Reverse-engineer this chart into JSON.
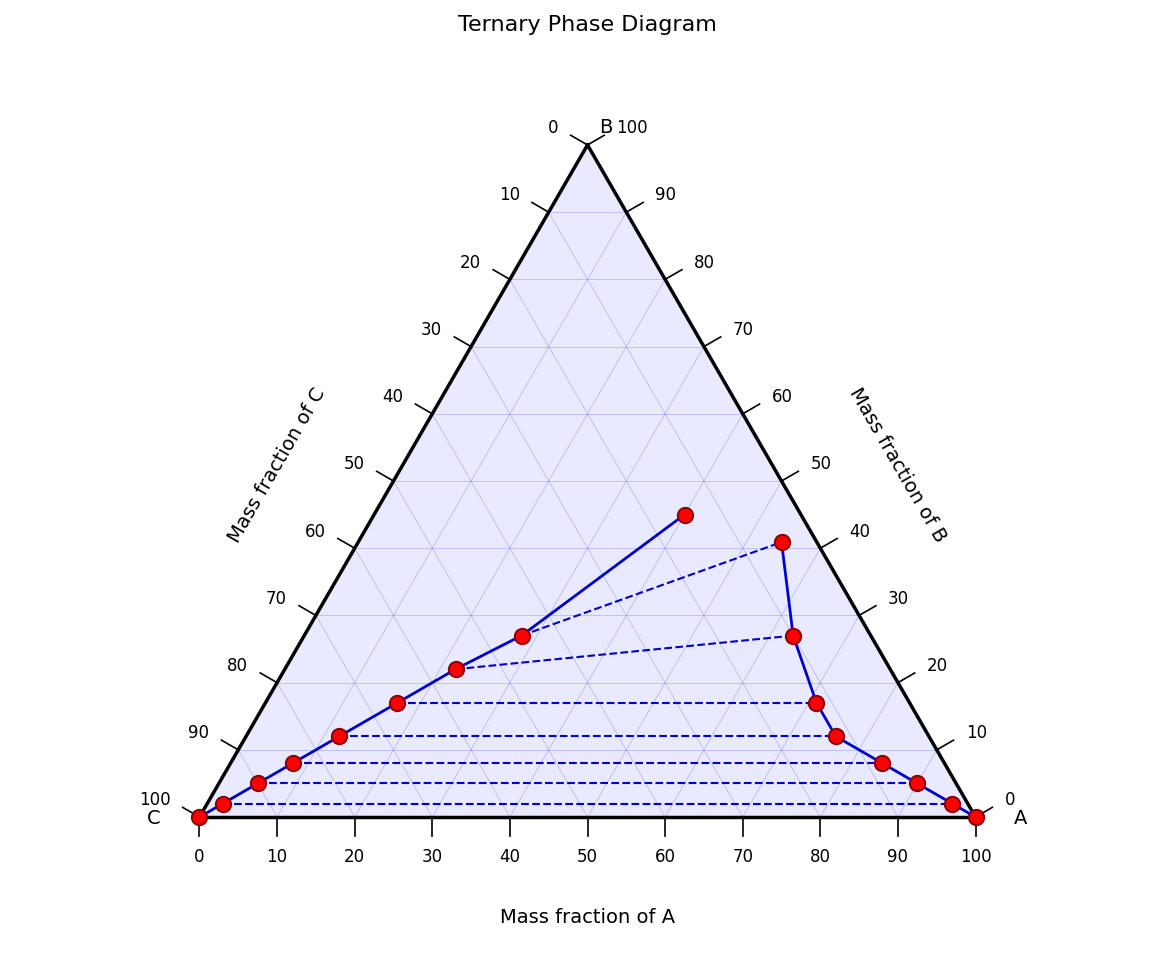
{
  "title": "Ternary Phase Diagram",
  "xlabel": "Mass fraction of A",
  "ylabel_left": "Mass fraction of C",
  "ylabel_right": "Mass fraction of B",
  "tick_values": [
    0,
    10,
    20,
    30,
    40,
    50,
    60,
    70,
    80,
    90,
    100
  ],
  "grid_color": "#0000ff",
  "grid_alpha": 0.3,
  "grid_linewidth": 0.4,
  "triangle_color": "#000000",
  "triangle_linewidth": 2.5,
  "fill_color": "#aaaaff",
  "fill_alpha": 0.25,
  "equilibrium_color": "#0000cc",
  "equilibrium_linewidth": 2.0,
  "point_color": "#ff0000",
  "point_size": 120,
  "tie_line_color": "#0000cc",
  "tie_line_linewidth": 1.5,
  "tie_line_style": "--",
  "eq_left_A": [
    0,
    2,
    5,
    8,
    12,
    17,
    22,
    28,
    40
  ],
  "eq_left_B": [
    0,
    2,
    5,
    8,
    12,
    17,
    22,
    27,
    45
  ],
  "eq_left_C": [
    100,
    96,
    90,
    84,
    76,
    66,
    56,
    45,
    15
  ],
  "eq_right_A": [
    100,
    96,
    90,
    84,
    76,
    71,
    63,
    60
  ],
  "eq_right_B": [
    0,
    2,
    5,
    8,
    12,
    17,
    27,
    45
  ],
  "eq_right_C": [
    0,
    2,
    5,
    8,
    12,
    12,
    10,
    5
  ],
  "tie_pairs_left": [
    1,
    2,
    3,
    4,
    5,
    6,
    7
  ],
  "tie_pairs_right": [
    1,
    2,
    3,
    4,
    5,
    6,
    7
  ]
}
